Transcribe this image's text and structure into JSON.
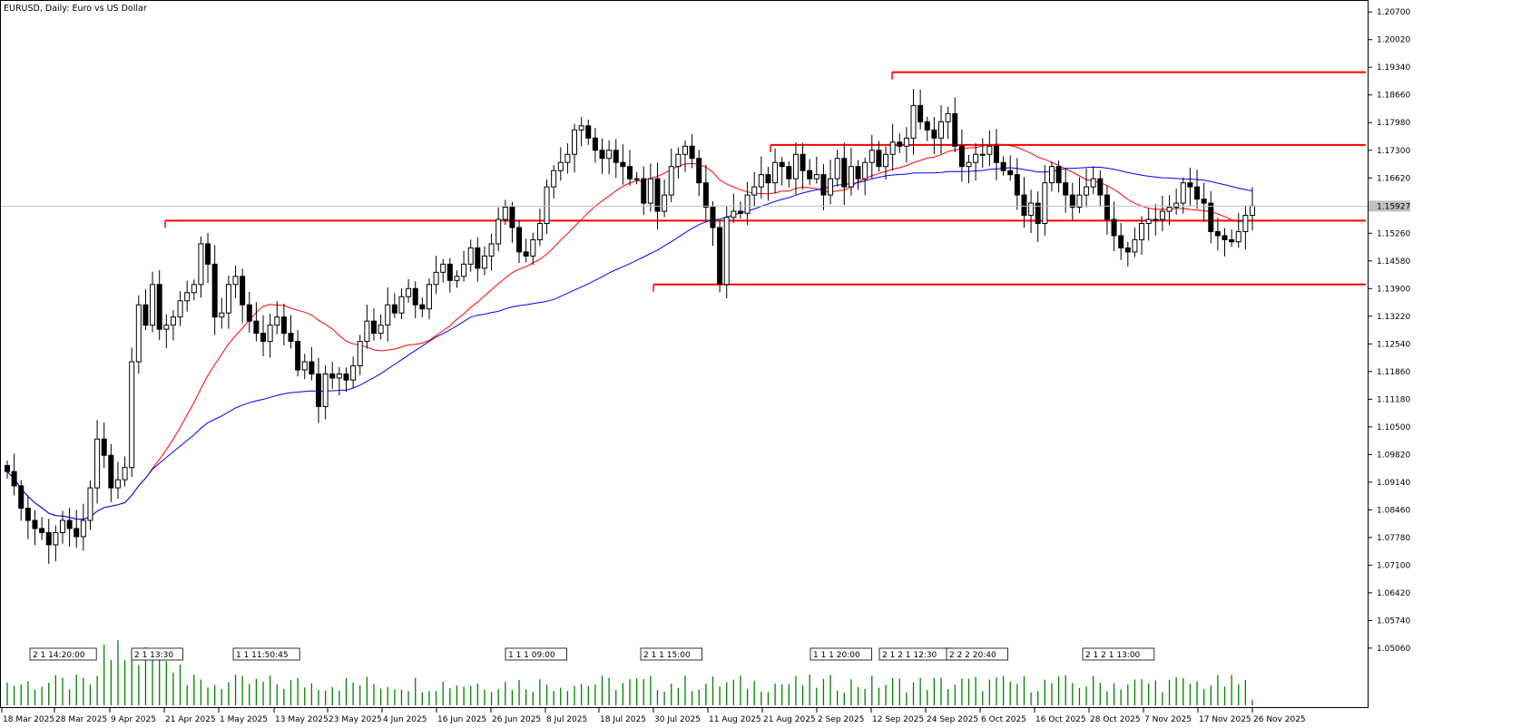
{
  "window": {
    "title": "EURUSD, Daily:  Euro vs US Dollar"
  },
  "colors": {
    "background": "#ffffff",
    "grid": "#000000",
    "candle_up_fill": "#ffffff",
    "candle_down_fill": "#000000",
    "candle_outline": "#000000",
    "ma_fast": "#ff0000",
    "ma_slow": "#0000ff",
    "level_line": "#ff0000",
    "volume": "#008000",
    "bid_line": "#c0c0c0",
    "price_label_bg": "#c0c0c0"
  },
  "chart_data": {
    "type": "candlestick",
    "symbol": "EURUSD",
    "timeframe": "Daily",
    "description": "Euro vs US Dollar",
    "ylim": [
      1.045,
      1.2095
    ],
    "y_ticks": [
      "1.20700",
      "1.20020",
      "1.19340",
      "1.18660",
      "1.17980",
      "1.17300",
      "1.16620",
      "1.15940",
      "1.15260",
      "1.14580",
      "1.13900",
      "1.13220",
      "1.12540",
      "1.11860",
      "1.11180",
      "1.10500",
      "1.09820",
      "1.09140",
      "1.08460",
      "1.07780",
      "1.07100",
      "1.06420",
      "1.05740",
      "1.05060"
    ],
    "current_price_label": "1.15927",
    "current_price": 1.15927,
    "x_labels": [
      "18 Mar 2025",
      "28 Mar 2025",
      "9 Apr 2025",
      "21 Apr 2025",
      "1 May 2025",
      "13 May 2025",
      "23 May 2025",
      "4 Jun 2025",
      "16 Jun 2025",
      "26 Jun 2025",
      "8 Jul 2025",
      "18 Jul 2025",
      "30 Jul 2025",
      "11 Aug 2025",
      "21 Aug 2025",
      "2 Sep 2025",
      "12 Sep 2025",
      "24 Sep 2025",
      "6 Oct 2025",
      "16 Oct 2025",
      "28 Oct 2025",
      "7 Nov 2025",
      "17 Nov 2025",
      "26 Nov 2025"
    ],
    "event_markers": [
      "2 1 14:20:00",
      "2 1 13:30",
      "1 1 11:50:45",
      "1 1 1 09:00",
      "2 1 1 15:00",
      "1 1 1 20:00",
      "2 1 2 1 12:30",
      "2 2 2 20:40",
      "2 1 2 1 13:00"
    ],
    "closes": [
      1.094,
      1.0905,
      1.085,
      1.082,
      1.08,
      1.079,
      1.076,
      1.079,
      1.082,
      1.08,
      1.078,
      1.082,
      1.09,
      1.102,
      1.098,
      1.09,
      1.092,
      1.095,
      1.121,
      1.135,
      1.13,
      1.14,
      1.129,
      1.13,
      1.132,
      1.136,
      1.138,
      1.14,
      1.15,
      1.145,
      1.132,
      1.133,
      1.14,
      1.142,
      1.135,
      1.131,
      1.128,
      1.126,
      1.13,
      1.132,
      1.128,
      1.126,
      1.119,
      1.121,
      1.118,
      1.11,
      1.118,
      1.117,
      1.118,
      1.1165,
      1.12,
      1.126,
      1.131,
      1.128,
      1.13,
      1.135,
      1.133,
      1.137,
      1.139,
      1.135,
      1.134,
      1.14,
      1.143,
      1.145,
      1.141,
      1.142,
      1.145,
      1.149,
      1.144,
      1.147,
      1.15,
      1.156,
      1.159,
      1.154,
      1.148,
      1.147,
      1.151,
      1.155,
      1.164,
      1.168,
      1.17,
      1.172,
      1.178,
      1.179,
      1.176,
      1.173,
      1.171,
      1.173,
      1.17,
      1.169,
      1.166,
      1.166,
      1.16,
      1.166,
      1.158,
      1.162,
      1.169,
      1.172,
      1.174,
      1.171,
      1.165,
      1.159,
      1.154,
      1.14,
      1.1565,
      1.158,
      1.1575,
      1.162,
      1.164,
      1.167,
      1.165,
      1.17,
      1.169,
      1.166,
      1.172,
      1.168,
      1.166,
      1.167,
      1.162,
      1.166,
      1.171,
      1.164,
      1.169,
      1.166,
      1.17,
      1.173,
      1.169,
      1.172,
      1.175,
      1.174,
      1.176,
      1.184,
      1.18,
      1.178,
      1.176,
      1.18,
      1.182,
      1.174,
      1.169,
      1.17,
      1.172,
      1.172,
      1.174,
      1.17,
      1.168,
      1.167,
      1.162,
      1.157,
      1.16,
      1.155,
      1.165,
      1.169,
      1.165,
      1.162,
      1.159,
      1.162,
      1.164,
      1.166,
      1.162,
      1.156,
      1.152,
      1.149,
      1.148,
      1.151,
      1.155,
      1.156,
      1.156,
      1.158,
      1.159,
      1.16,
      1.165,
      1.164,
      1.161,
      1.16,
      1.153,
      1.152,
      1.151,
      1.1505,
      1.153,
      1.157,
      1.1593
    ]
  }
}
